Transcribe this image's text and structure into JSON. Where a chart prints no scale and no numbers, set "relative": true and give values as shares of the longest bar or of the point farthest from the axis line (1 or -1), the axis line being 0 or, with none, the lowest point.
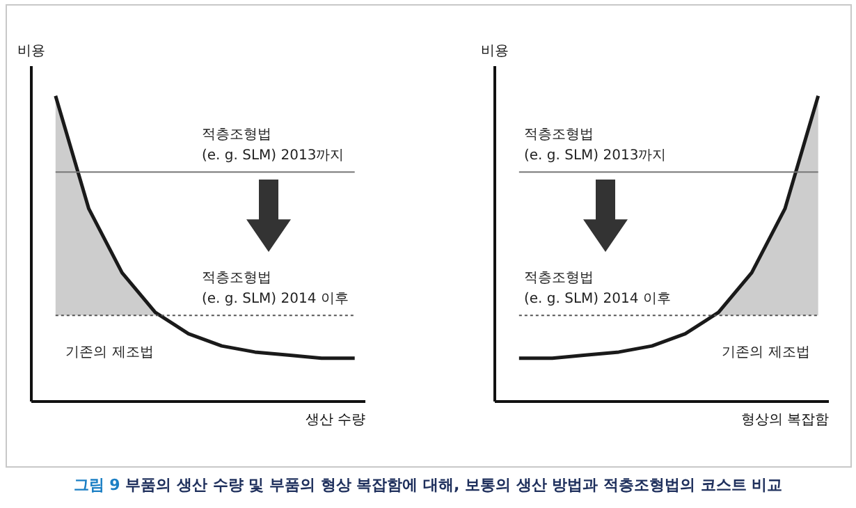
{
  "chart_data": [
    {
      "type": "line",
      "relative": true,
      "ylabel": "비용",
      "xlabel": "생산 수량",
      "categories": [
        null,
        null,
        null,
        null,
        null,
        null,
        null,
        null,
        null,
        null
      ],
      "series": [
        {
          "color": "#1a1a1a",
          "values": [
            1,
            0.63,
            0.42,
            0.29,
            0.22,
            0.18,
            0.16,
            0.15,
            0.14,
            0.14
          ],
          "lower": [
            0.28,
            0.28,
            0.28,
            0.28,
            null,
            null,
            null,
            null,
            null,
            null
          ],
          "upper": [
            1,
            0.63,
            0.42,
            0.29,
            null,
            null,
            null,
            null,
            null,
            null
          ]
        }
      ],
      "ref_lines": [
        {
          "axis": "y",
          "value": 0.75,
          "label": "적층조형법\n(e. g. SLM) 2013까지",
          "color": "#777777",
          "line_style": "solid"
        },
        {
          "axis": "y",
          "value": 0.28,
          "label": "적층조형법\n(e. g. SLM) 2014 이후",
          "color": "#555555",
          "line_style": "dotted"
        }
      ],
      "annotations": [
        "기존의 제조법",
        "그림 9 부품의 생산 수량 및 부품의 형상 복잡함에 대해, 보통의 생산 방법과 적층조형법의 코스트 비교"
      ]
    },
    {
      "type": "line",
      "relative": true,
      "ylabel": "비용",
      "xlabel": "형상의 복잡함",
      "categories": [
        null,
        null,
        null,
        null,
        null,
        null,
        null,
        null,
        null,
        null
      ],
      "series": [
        {
          "color": "#1a1a1a",
          "values": [
            0.14,
            0.14,
            0.15,
            0.16,
            0.18,
            0.22,
            0.29,
            0.42,
            0.63,
            1
          ],
          "lower": [
            null,
            null,
            null,
            null,
            null,
            null,
            0.28,
            0.28,
            0.28,
            0.28
          ],
          "upper": [
            null,
            null,
            null,
            null,
            null,
            null,
            0.29,
            0.42,
            0.63,
            1
          ]
        }
      ],
      "ref_lines": [
        {
          "axis": "y",
          "value": 0.75,
          "label": "적층조형법\n(e. g. SLM) 2013까지",
          "color": "#777777",
          "line_style": "solid"
        },
        {
          "axis": "y",
          "value": 0.28,
          "label": "적층조형법\n(e. g. SLM) 2014 이후",
          "color": "#555555",
          "line_style": "dotted"
        }
      ],
      "annotations": [
        "기존의 제조법"
      ]
    }
  ]
}
